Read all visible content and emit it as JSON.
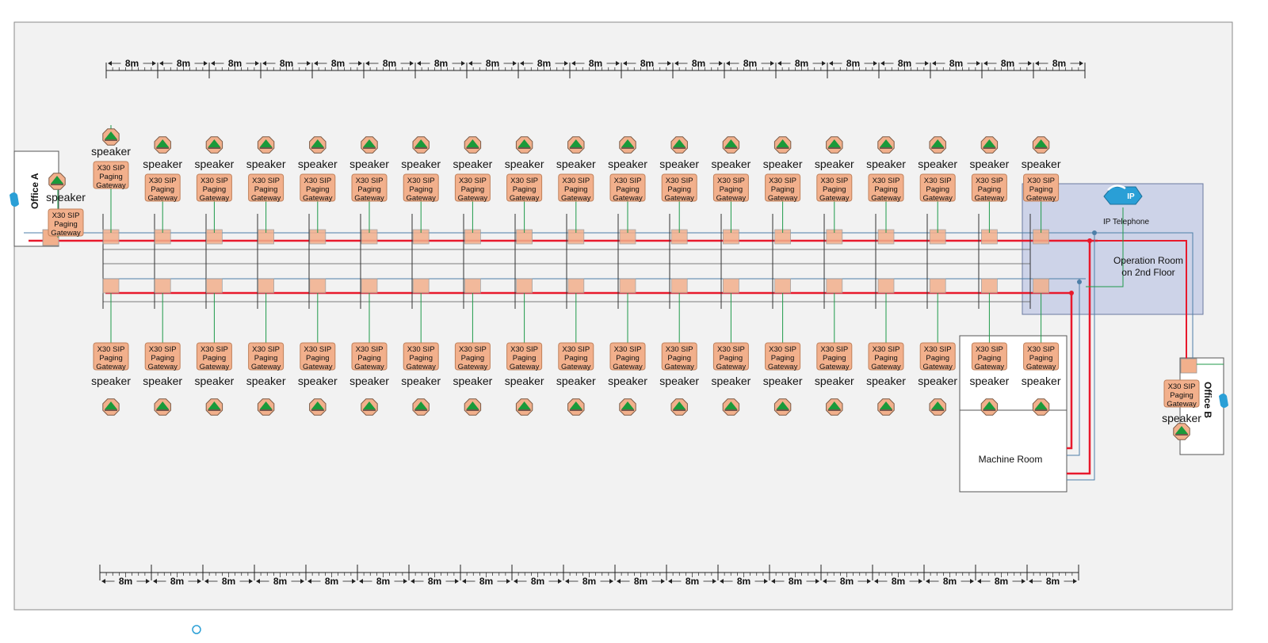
{
  "scale": {
    "label": "8m",
    "top_count": 19,
    "bottom_count": 19
  },
  "speaker_label": "speaker",
  "gateway_label": [
    "X30 SIP",
    "Paging",
    "Gateway"
  ],
  "rooms": {
    "office_a": "Office A",
    "office_b": "Office B",
    "operation_room": [
      "Operation Room",
      "on 2nd Floor"
    ],
    "machine_room": "Machine Room"
  },
  "ip_telephone": {
    "label": "IP Telephone",
    "badge": "IP"
  },
  "units": {
    "top_row_count": 19,
    "bottom_row_count": 19,
    "office_a_count": 1,
    "office_b_count": 1
  },
  "colors": {
    "background": "#f2f2f2",
    "gateway_fill": "#f2b08c",
    "gateway_stroke": "#c0805a",
    "speaker_fill": "#f2b08c",
    "speaker_triangle": "#1a9a3a",
    "red_line": "#e8192c",
    "blue_line": "#4d7fa8",
    "green_line": "#1f9a4a",
    "operation_room_fill": "#cdd3e8",
    "phone_blue": "#2a9fd6"
  }
}
